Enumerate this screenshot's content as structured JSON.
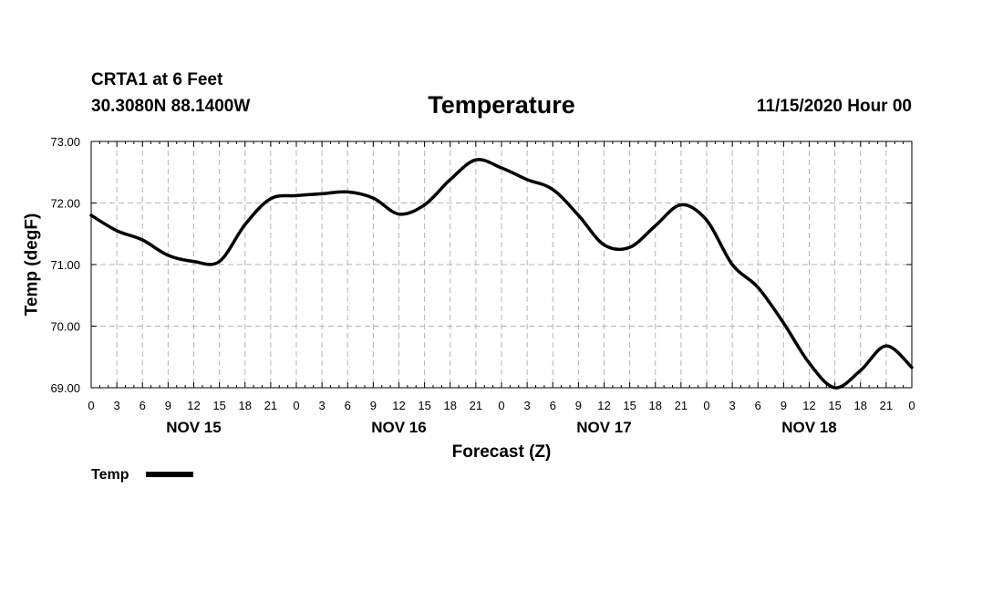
{
  "header": {
    "station": "CRTA1 at 6 Feet",
    "coords": "30.3080N 88.1400W",
    "title": "Temperature",
    "cycle": "11/15/2020 Hour 00"
  },
  "chart_data": {
    "type": "line",
    "title": "Temperature",
    "xlabel": "Forecast (Z)",
    "ylabel": "Temp (degF)",
    "xlim": [
      0,
      96
    ],
    "ylim": [
      69,
      73
    ],
    "y_ticks": [
      "69.00",
      "70.00",
      "71.00",
      "72.00",
      "73.00"
    ],
    "y_tick_values": [
      69,
      70,
      71,
      72,
      73
    ],
    "x_tick_values": [
      0,
      3,
      6,
      9,
      12,
      15,
      18,
      21,
      24,
      27,
      30,
      33,
      36,
      39,
      42,
      45,
      48,
      51,
      54,
      57,
      60,
      63,
      66,
      69,
      72,
      75,
      78,
      81,
      84,
      87,
      90,
      93,
      96
    ],
    "x_tick_labels": [
      "0",
      "3",
      "6",
      "9",
      "12",
      "15",
      "18",
      "21",
      "0",
      "3",
      "6",
      "9",
      "12",
      "15",
      "18",
      "21",
      "0",
      "3",
      "6",
      "9",
      "12",
      "15",
      "18",
      "21",
      "0",
      "3",
      "6",
      "9",
      "12",
      "15",
      "18",
      "21",
      "0"
    ],
    "day_labels": [
      "NOV 15",
      "NOV 16",
      "NOV 17",
      "NOV 18"
    ],
    "day_label_hours": [
      12,
      36,
      60,
      84
    ],
    "grid": true,
    "legend": "bottom-left",
    "series": [
      {
        "name": "Temp",
        "color": "#000000",
        "x": [
          0,
          3,
          6,
          9,
          12,
          15,
          18,
          21,
          24,
          27,
          30,
          33,
          36,
          39,
          42,
          45,
          48,
          51,
          54,
          57,
          60,
          63,
          66,
          69,
          72,
          75,
          78,
          81,
          84,
          87,
          90,
          93,
          96
        ],
        "values": [
          71.8,
          71.55,
          71.4,
          71.15,
          71.05,
          71.05,
          71.65,
          72.07,
          72.12,
          72.15,
          72.18,
          72.08,
          71.82,
          71.97,
          72.38,
          72.7,
          72.57,
          72.38,
          72.22,
          71.8,
          71.32,
          71.28,
          71.63,
          71.97,
          71.72,
          71.0,
          70.63,
          70.05,
          69.4,
          69.0,
          69.28,
          69.68,
          69.33
        ]
      }
    ]
  }
}
